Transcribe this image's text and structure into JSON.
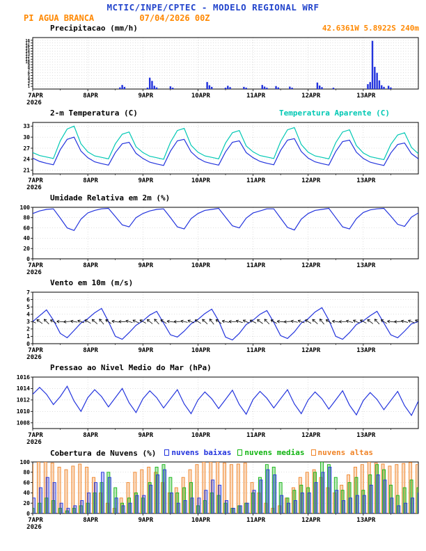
{
  "header": {
    "title": "MCTIC/INPE/CPTEC - MODELO REGIONAL WRF",
    "station": "PI AGUA BRANCA",
    "run": "07/04/2026 00Z",
    "coords": "42.6361W 5.8922S 240m"
  },
  "colors": {
    "header_blue": "#2244cc",
    "orange": "#ff8800",
    "line_blue": "#2233dd",
    "cyan": "#00c8b4",
    "green": "#11b411",
    "cloud_orange": "#f08428"
  },
  "x_axis": {
    "hours_total": 168,
    "day_ticks": [
      0,
      24,
      48,
      72,
      96,
      120,
      144
    ],
    "day_labels": [
      "7APR",
      "8APR",
      "9APR",
      "10APR",
      "11APR",
      "12APR",
      "13APR"
    ],
    "year": "2026"
  },
  "chart_data": [
    {
      "id": "precipitation",
      "type": "bar",
      "title": "Precipitacao (mm/h)",
      "ylim": [
        0,
        19
      ],
      "yticks": [
        1,
        2,
        3,
        4,
        5,
        6,
        7,
        8,
        9,
        10,
        11,
        12,
        13,
        14,
        15,
        16,
        17,
        18
      ],
      "step_hours": 1,
      "series": [
        {
          "name": "Precipitacao",
          "color": "#2233dd",
          "values": [
            0,
            0,
            0,
            0,
            0,
            0,
            0,
            0,
            0,
            0,
            0,
            0,
            0,
            0,
            0,
            0,
            0,
            0,
            0,
            0,
            0,
            0,
            0,
            0,
            0,
            0,
            0,
            0,
            0,
            0,
            0,
            0,
            0,
            0,
            0,
            0,
            0,
            0,
            0.6,
            1.5,
            0.8,
            0,
            0,
            0,
            0,
            0,
            0,
            0,
            0,
            0,
            0.5,
            4.2,
            3.0,
            1.2,
            0.6,
            0,
            0,
            0,
            0,
            0,
            1.0,
            0.5,
            0,
            0,
            0,
            0,
            0,
            0,
            0,
            0,
            0,
            0,
            0,
            0,
            0,
            0,
            2.6,
            1.4,
            0.8,
            0,
            0,
            0,
            0,
            0,
            0.5,
            1.2,
            0.7,
            0,
            0,
            0,
            0,
            0,
            0.8,
            0.5,
            0,
            0,
            0,
            0,
            0,
            0,
            1.5,
            0.9,
            0.5,
            0,
            0,
            0,
            1.1,
            0.6,
            0,
            0,
            0,
            0,
            0.9,
            0.5,
            0,
            0,
            0,
            0,
            0,
            0,
            0,
            0,
            0,
            0,
            2.4,
            1.3,
            0.7,
            0,
            0,
            0,
            0,
            0.5,
            0,
            0,
            0,
            0,
            0,
            0,
            0,
            0,
            0,
            0,
            0,
            0,
            0,
            0,
            1.8,
            2.6,
            17.8,
            8.2,
            6.0,
            3.2,
            1.4,
            0.8,
            0,
            1.2,
            0.6,
            0,
            0,
            0,
            0,
            0,
            0,
            0,
            0,
            0,
            0,
            0,
            0
          ]
        }
      ]
    },
    {
      "id": "temperature",
      "type": "line",
      "title": "2-m Temperatura (C)",
      "ylim": [
        20,
        34
      ],
      "yticks": [
        21,
        24,
        27,
        30,
        33
      ],
      "step_hours": 3,
      "series": [
        {
          "name": "2-m Temperatura (C)",
          "color": "#2233dd",
          "values": [
            24.3,
            23.4,
            22.9,
            22.5,
            26.6,
            29.4,
            30.0,
            26.2,
            24.4,
            23.3,
            22.8,
            22.4,
            25.8,
            28.2,
            28.6,
            25.6,
            24.2,
            23.2,
            22.7,
            22.3,
            26.2,
            29.0,
            29.4,
            26.0,
            24.3,
            23.3,
            22.8,
            22.4,
            26.0,
            28.6,
            29.0,
            25.8,
            24.4,
            23.4,
            22.9,
            22.5,
            26.4,
            29.2,
            29.6,
            26.1,
            24.3,
            23.3,
            22.8,
            22.4,
            26.1,
            28.8,
            29.2,
            25.9,
            24.2,
            23.2,
            22.7,
            22.3,
            25.7,
            28.0,
            28.4,
            25.5,
            24.1
          ]
        },
        {
          "name": "Temperatura Aparente (C)",
          "color": "#00c8b4",
          "values": [
            25.8,
            25.0,
            24.6,
            24.2,
            29.0,
            32.2,
            33.0,
            28.2,
            26.0,
            24.9,
            24.5,
            24.1,
            28.2,
            30.8,
            31.4,
            27.4,
            25.8,
            24.8,
            24.4,
            24.0,
            28.6,
            31.8,
            32.4,
            27.8,
            25.9,
            24.9,
            24.5,
            24.1,
            28.4,
            31.2,
            31.8,
            27.6,
            26.0,
            25.0,
            24.6,
            24.2,
            28.8,
            32.0,
            32.6,
            28.0,
            25.9,
            24.9,
            24.5,
            24.1,
            28.5,
            31.4,
            32.0,
            27.7,
            25.7,
            24.7,
            24.3,
            23.9,
            28.0,
            30.6,
            31.2,
            27.2,
            25.5
          ]
        }
      ]
    },
    {
      "id": "relative-humidity",
      "type": "line",
      "title": "Umidade Relativa em 2m (%)",
      "ylim": [
        0,
        100
      ],
      "yticks": [
        0,
        20,
        40,
        60,
        80,
        100
      ],
      "step_hours": 3,
      "series": [
        {
          "name": "Umidade Relativa em 2m",
          "color": "#2233dd",
          "values": [
            88,
            93,
            96,
            97,
            79,
            60,
            55,
            77,
            89,
            94,
            97,
            98,
            82,
            66,
            62,
            80,
            88,
            93,
            96,
            97,
            80,
            62,
            58,
            78,
            88,
            94,
            96,
            98,
            81,
            64,
            60,
            79,
            89,
            93,
            97,
            97,
            79,
            61,
            56,
            77,
            88,
            94,
            96,
            98,
            80,
            62,
            58,
            78,
            90,
            95,
            97,
            98,
            83,
            67,
            63,
            81,
            89
          ]
        }
      ]
    },
    {
      "id": "wind",
      "type": "wind",
      "title": "Vento em 10m (m/s)",
      "ylim": [
        0,
        7
      ],
      "yticks": [
        0,
        1,
        2,
        3,
        4,
        5,
        6,
        7
      ],
      "step_hours": 3,
      "barb_level": 3,
      "directions_deg": [
        115,
        125,
        135,
        120,
        95,
        85,
        100,
        110,
        120,
        130,
        140,
        125,
        100,
        90,
        105,
        115,
        118,
        128,
        138,
        122,
        98,
        88,
        102,
        112,
        122,
        132,
        142,
        126,
        102,
        92,
        106,
        116,
        116,
        126,
        136,
        121,
        96,
        86,
        101,
        111,
        121,
        131,
        141,
        124,
        99,
        89,
        104,
        114,
        117,
        127,
        137,
        123,
        97,
        87,
        103,
        113,
        118
      ],
      "series": [
        {
          "name": "Velocidade do Vento em 10m",
          "color": "#2233dd",
          "values": [
            3.0,
            3.8,
            4.6,
            3.2,
            1.4,
            0.8,
            1.8,
            2.8,
            3.4,
            4.2,
            4.8,
            3.0,
            1.0,
            0.6,
            1.5,
            2.5,
            3.1,
            3.9,
            4.4,
            2.8,
            1.2,
            0.9,
            1.7,
            2.7,
            3.3,
            4.1,
            4.7,
            3.1,
            0.9,
            0.5,
            1.4,
            2.6,
            3.2,
            4.0,
            4.5,
            2.9,
            1.1,
            0.7,
            1.6,
            2.8,
            3.4,
            4.3,
            4.9,
            3.2,
            1.0,
            0.6,
            1.5,
            2.6,
            3.1,
            3.8,
            4.4,
            2.8,
            1.2,
            0.8,
            1.7,
            2.7,
            3.0
          ]
        }
      ]
    },
    {
      "id": "pressure",
      "type": "line",
      "title": "Pressao ao Nivel Medio do Mar (hPa)",
      "ylim": [
        1007,
        1016
      ],
      "yticks": [
        1008,
        1010,
        1012,
        1014,
        1016
      ],
      "step_hours": 3,
      "series": [
        {
          "name": "Pressao ao Nivel Medio do Mar",
          "color": "#2233dd",
          "values": [
            1013.0,
            1014.2,
            1013.0,
            1011.2,
            1012.6,
            1014.4,
            1011.8,
            1010.0,
            1012.4,
            1013.8,
            1012.6,
            1010.8,
            1012.4,
            1014.0,
            1011.5,
            1009.8,
            1012.2,
            1013.6,
            1012.4,
            1010.6,
            1012.2,
            1013.8,
            1011.3,
            1009.6,
            1012.0,
            1013.4,
            1012.2,
            1010.5,
            1012.1,
            1013.7,
            1011.2,
            1009.5,
            1012.1,
            1013.5,
            1012.3,
            1010.6,
            1012.2,
            1013.8,
            1011.3,
            1009.6,
            1012.0,
            1013.4,
            1012.2,
            1010.4,
            1012.0,
            1013.6,
            1011.1,
            1009.4,
            1011.9,
            1013.3,
            1012.1,
            1010.3,
            1011.9,
            1013.5,
            1011.0,
            1009.3,
            1011.8
          ]
        }
      ]
    },
    {
      "id": "cloud-cover",
      "type": "bars3",
      "title": "Cobertura de Nuvens (%)",
      "ylim": [
        0,
        100
      ],
      "yticks": [
        0,
        20,
        40,
        60,
        80,
        100
      ],
      "step_hours": 3,
      "series": [
        {
          "name": "nuvens baixas",
          "color": "#2233dd",
          "values": [
            30,
            50,
            70,
            60,
            20,
            10,
            15,
            25,
            40,
            60,
            80,
            70,
            30,
            15,
            20,
            35,
            35,
            55,
            75,
            85,
            40,
            20,
            25,
            30,
            30,
            45,
            65,
            55,
            25,
            10,
            15,
            20,
            45,
            65,
            85,
            75,
            35,
            20,
            25,
            40,
            40,
            60,
            80,
            90,
            45,
            25,
            30,
            35,
            35,
            55,
            75,
            65,
            30,
            15,
            20,
            30,
            40
          ]
        },
        {
          "name": "nuvens medias",
          "color": "#11b411",
          "values": [
            10,
            20,
            30,
            25,
            10,
            5,
            10,
            15,
            20,
            40,
            60,
            80,
            50,
            20,
            30,
            40,
            30,
            60,
            90,
            95,
            70,
            40,
            50,
            60,
            15,
            25,
            40,
            35,
            20,
            10,
            15,
            20,
            40,
            70,
            95,
            90,
            60,
            30,
            45,
            55,
            50,
            80,
            100,
            95,
            70,
            45,
            60,
            70,
            45,
            75,
            95,
            85,
            55,
            35,
            50,
            65,
            50
          ]
        },
        {
          "name": "nuvens altas",
          "color": "#f08428",
          "values": [
            95,
            100,
            100,
            98,
            90,
            85,
            92,
            96,
            90,
            70,
            40,
            20,
            10,
            30,
            60,
            80,
            85,
            90,
            80,
            60,
            40,
            50,
            70,
            85,
            95,
            100,
            100,
            100,
            98,
            95,
            96,
            98,
            60,
            40,
            20,
            10,
            15,
            30,
            50,
            70,
            80,
            85,
            70,
            50,
            40,
            55,
            75,
            90,
            95,
            100,
            98,
            96,
            92,
            95,
            97,
            99,
            95
          ]
        }
      ]
    }
  ]
}
